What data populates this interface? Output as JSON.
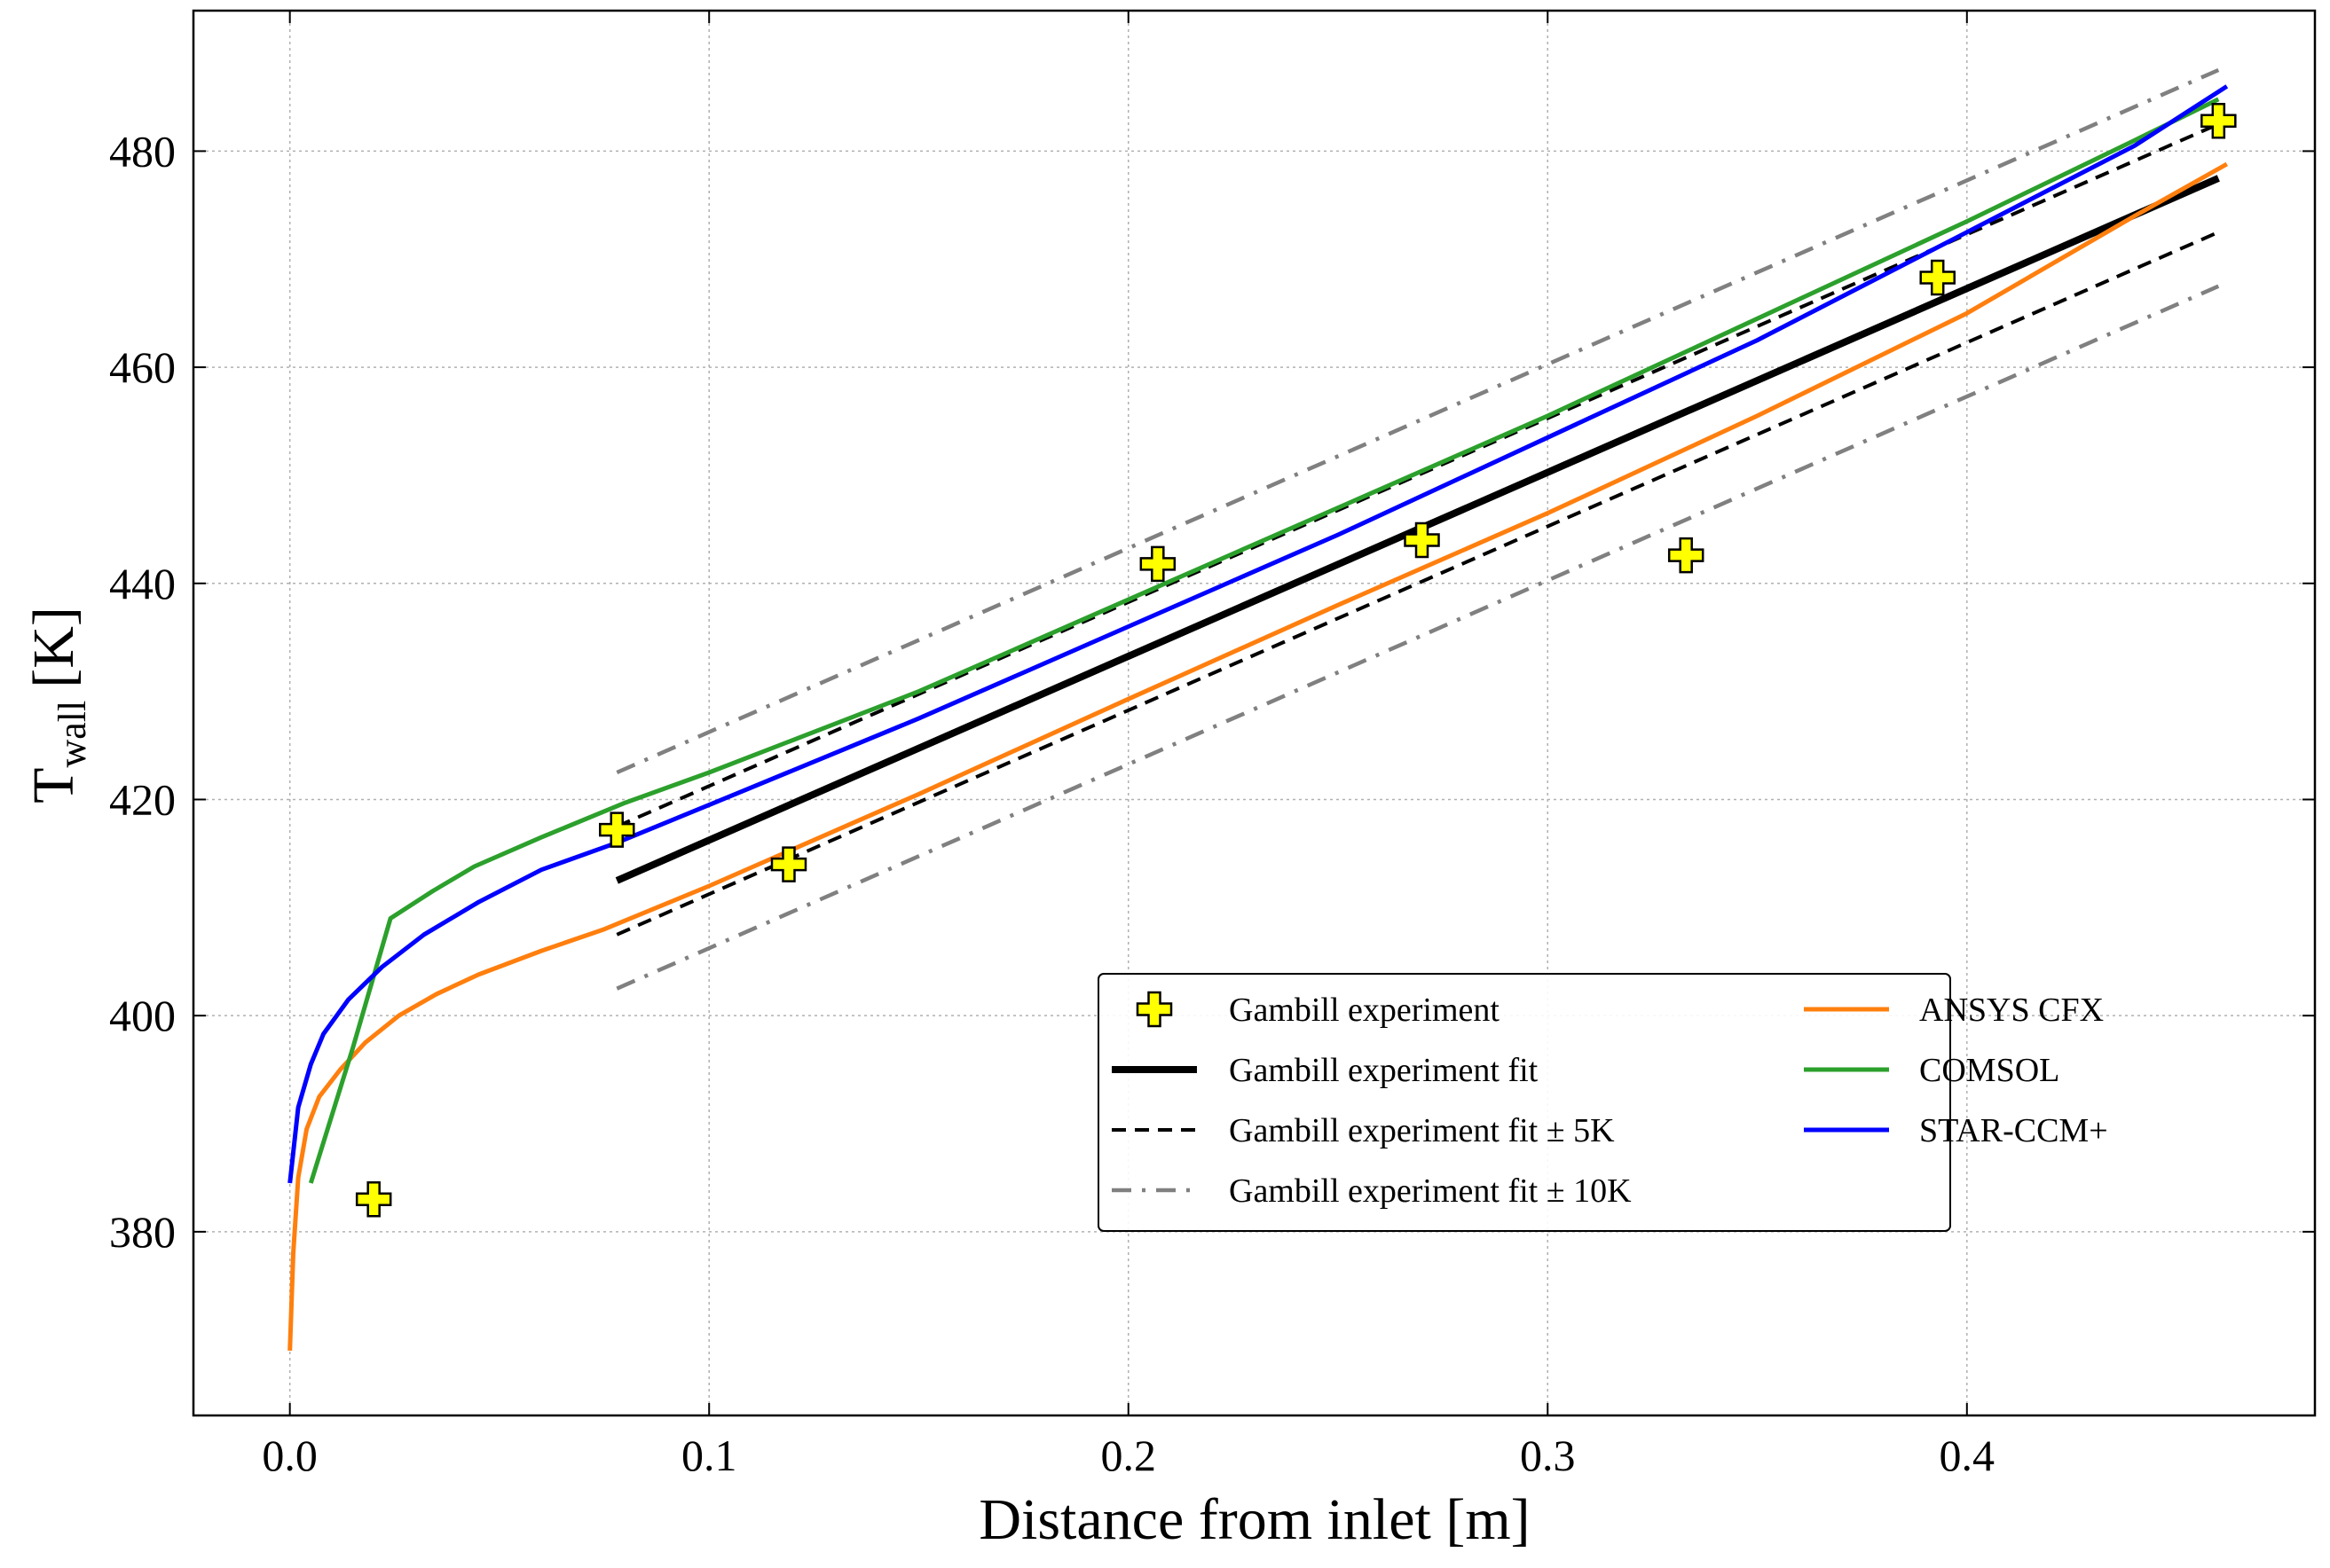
{
  "chart_data": {
    "type": "line",
    "title": "",
    "xlabel": "Distance from inlet [m]",
    "ylabel": {
      "main": "T",
      "subscript": "wall",
      "unit": "[K]"
    },
    "xlim": [
      -0.023,
      0.483
    ],
    "ylim": [
      363,
      493
    ],
    "x_ticks": [
      0.0,
      0.1,
      0.2,
      0.3,
      0.4
    ],
    "x_tick_labels": [
      "0.0",
      "0.1",
      "0.2",
      "0.3",
      "0.4"
    ],
    "y_ticks": [
      380,
      400,
      420,
      440,
      460,
      480
    ],
    "y_tick_labels": [
      "380",
      "400",
      "420",
      "440",
      "460",
      "480"
    ],
    "grid": true,
    "legend_position": "lower-right",
    "series": [
      {
        "name": "Gambill experiment",
        "kind": "scatter",
        "marker": "plus",
        "color": "#ffff00",
        "x": [
          0.02,
          0.078,
          0.119,
          0.207,
          0.27,
          0.333,
          0.393,
          0.46
        ],
        "y": [
          383.0,
          417.2,
          414.0,
          441.8,
          444.0,
          442.6,
          468.3,
          482.8
        ]
      },
      {
        "name": "Gambill experiment fit",
        "kind": "line",
        "style": "solid-thick",
        "color": "#000000",
        "x": [
          0.078,
          0.46
        ],
        "y": [
          412.5,
          477.5
        ]
      },
      {
        "name": "Gambill experiment fit ± 5K",
        "kind": "line",
        "style": "dashed",
        "color": "#000000",
        "x": [
          0.078,
          0.46
        ],
        "y": [
          417.5,
          482.5
        ],
        "x2": [
          0.078,
          0.46
        ],
        "y2": [
          407.5,
          472.5
        ]
      },
      {
        "name": "Gambill experiment fit ± 10K",
        "kind": "line",
        "style": "dashdot",
        "color": "#808080",
        "x": [
          0.078,
          0.46
        ],
        "y": [
          422.5,
          487.5
        ],
        "x2": [
          0.078,
          0.46
        ],
        "y2": [
          402.5,
          467.5
        ]
      },
      {
        "name": "ANSYS CFX",
        "kind": "line",
        "style": "solid",
        "color": "#ff7f0e",
        "x": [
          0.0,
          0.0008,
          0.002,
          0.004,
          0.007,
          0.012,
          0.018,
          0.026,
          0.035,
          0.045,
          0.06,
          0.075,
          0.1,
          0.15,
          0.2,
          0.25,
          0.3,
          0.35,
          0.4,
          0.44,
          0.462
        ],
        "y": [
          369.0,
          378.0,
          385.0,
          389.5,
          392.5,
          395.0,
          397.5,
          400.0,
          402.0,
          403.8,
          406.0,
          408.0,
          412.0,
          420.5,
          429.3,
          438.0,
          446.5,
          455.5,
          465.0,
          474.0,
          478.8
        ]
      },
      {
        "name": "COMSOL",
        "kind": "line",
        "style": "solid",
        "color": "#2ca02c",
        "x": [
          0.005,
          0.015,
          0.024,
          0.034,
          0.044,
          0.06,
          0.08,
          0.1,
          0.15,
          0.2,
          0.25,
          0.3,
          0.35,
          0.4,
          0.44,
          0.46
        ],
        "y": [
          384.5,
          397.0,
          409.0,
          411.5,
          413.8,
          416.5,
          419.7,
          422.5,
          430.0,
          438.5,
          447.0,
          455.5,
          464.5,
          473.5,
          481.0,
          484.8
        ]
      },
      {
        "name": "STAR-CCM+",
        "kind": "line",
        "style": "solid",
        "color": "#0000ff",
        "x": [
          0.0,
          0.002,
          0.005,
          0.008,
          0.014,
          0.022,
          0.032,
          0.045,
          0.06,
          0.078,
          0.1,
          0.15,
          0.2,
          0.25,
          0.3,
          0.35,
          0.4,
          0.44,
          0.462
        ],
        "y": [
          384.5,
          391.5,
          395.5,
          398.3,
          401.5,
          404.5,
          407.5,
          410.5,
          413.5,
          416.0,
          419.5,
          427.5,
          436.0,
          444.5,
          453.5,
          462.5,
          472.5,
          480.5,
          486.0
        ]
      }
    ]
  }
}
